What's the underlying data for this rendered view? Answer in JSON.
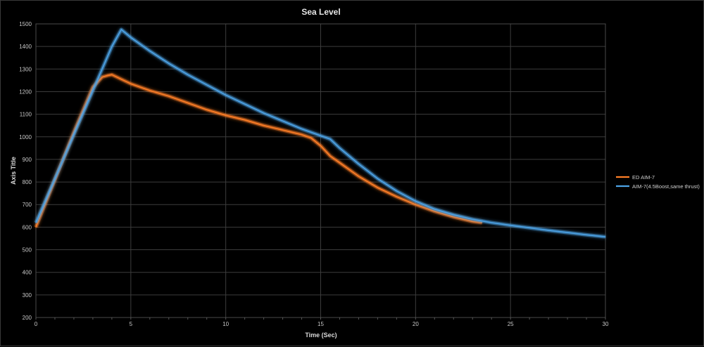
{
  "chart_data": {
    "type": "line",
    "title": "Sea Level",
    "xlabel": "Time (Sec)",
    "ylabel": "Axis Title",
    "xlim": [
      0,
      30
    ],
    "ylim": [
      200,
      1500
    ],
    "xticks": [
      "0",
      "5",
      "10",
      "15",
      "20",
      "25",
      "30"
    ],
    "yticks": [
      "200",
      "300",
      "400",
      "500",
      "600",
      "700",
      "800",
      "900",
      "1000",
      "1100",
      "1200",
      "1300",
      "1400",
      "1500"
    ],
    "grid": true,
    "legend_position": "right",
    "series": [
      {
        "name": "ED AIM-7",
        "color": "#ff7f27",
        "x": [
          0,
          1,
          2,
          3,
          3.5,
          3.8,
          4,
          4.5,
          5,
          6,
          7,
          8,
          9,
          10,
          11,
          12,
          13,
          14,
          14.5,
          15,
          15.5,
          16,
          17,
          18,
          19,
          20,
          21,
          22,
          23,
          23.5
        ],
        "y": [
          600,
          810,
          1020,
          1220,
          1265,
          1272,
          1275,
          1255,
          1235,
          1205,
          1180,
          1150,
          1120,
          1095,
          1075,
          1050,
          1030,
          1010,
          995,
          960,
          915,
          885,
          825,
          775,
          735,
          700,
          670,
          645,
          625,
          620
        ]
      },
      {
        "name": "AIM-7(4.5Boost,same thrust)",
        "color": "#4da3e6",
        "x": [
          0,
          1,
          2,
          3,
          4,
          4.5,
          5,
          6,
          7,
          8,
          9,
          10,
          11,
          12,
          13,
          14,
          15,
          15.5,
          16,
          17,
          18,
          19,
          20,
          21,
          22,
          23,
          24,
          25,
          26,
          27,
          28,
          29,
          30
        ],
        "y": [
          620,
          815,
          1010,
          1205,
          1400,
          1475,
          1440,
          1380,
          1325,
          1275,
          1230,
          1185,
          1145,
          1105,
          1070,
          1035,
          1005,
          990,
          950,
          880,
          815,
          760,
          715,
          680,
          655,
          635,
          620,
          608,
          597,
          586,
          576,
          566,
          557
        ]
      }
    ]
  }
}
